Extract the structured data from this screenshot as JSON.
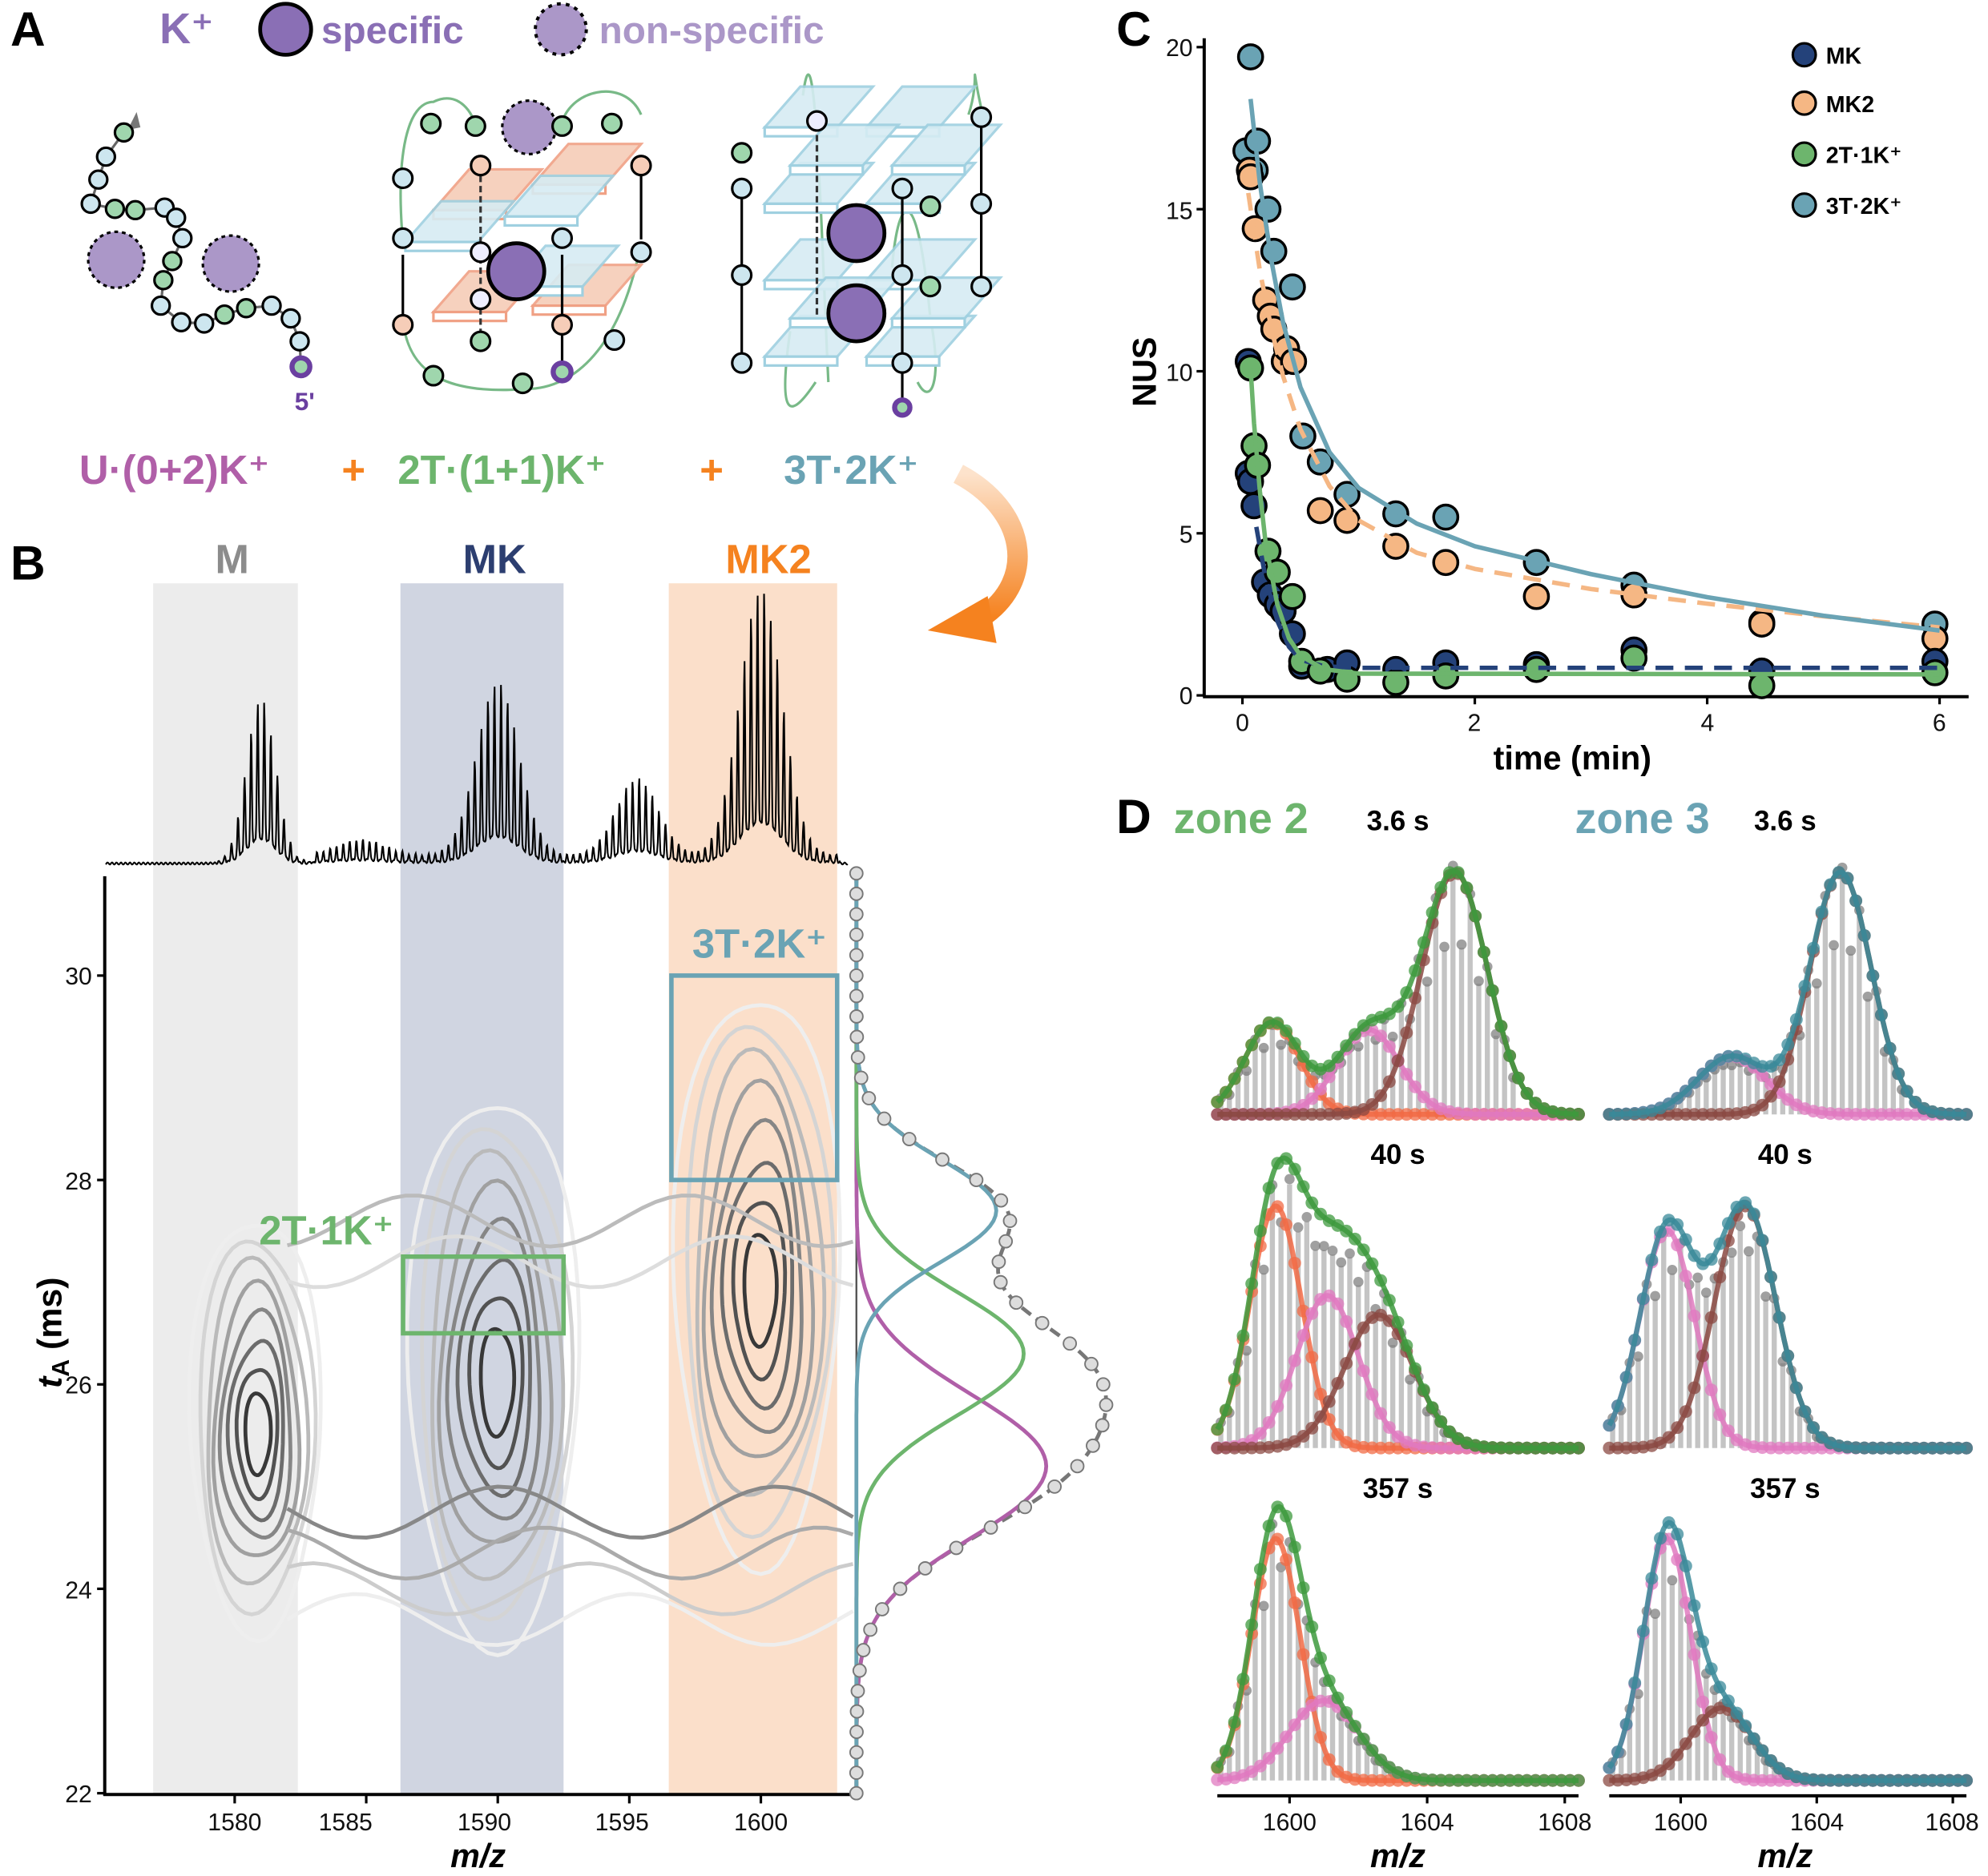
{
  "panel_a": {
    "letter": "A",
    "legend_k": "K⁺",
    "legend_specific": "specific",
    "legend_nonspecific": "non-specific",
    "five_prime": "5'",
    "species": [
      "U·(0+2)K⁺",
      "+",
      "2T·(1+1)K⁺",
      "+",
      "3T·2K⁺"
    ],
    "colors": {
      "k": "#8a6fb5",
      "specific": "#8a6fb5",
      "nonspecific": "#ab97c8",
      "U": "#b05fa8",
      "plus": "#f5821f",
      "2T": "#6db56d",
      "3T": "#6aa3b4"
    }
  },
  "panel_b": {
    "letter": "B",
    "bands": [
      {
        "label": "M",
        "mz_range": [
          1576.9,
          1582.4
        ],
        "color": "#ececec",
        "label_color": "#8c8c8c"
      },
      {
        "label": "MK",
        "mz_range": [
          1586.3,
          1592.5
        ],
        "color": "#d0d5e1",
        "label_color": "#2c3e70"
      },
      {
        "label": "MK2",
        "mz_range": [
          1596.5,
          1602.9
        ],
        "color": "#fbdfca",
        "label_color": "#f5821f"
      }
    ],
    "boxes": [
      {
        "label": "3T·2K⁺",
        "mz_range": [
          1596.6,
          1602.9
        ],
        "tA_range": [
          28.0,
          30.0
        ],
        "color": "#6aa3b4"
      },
      {
        "label": "2T·1K⁺",
        "mz_range": [
          1586.4,
          1592.5
        ],
        "tA_range": [
          26.5,
          27.25
        ],
        "color": "#6db56d"
      }
    ],
    "x_label": "m/z",
    "y_label_main": "t",
    "y_label_sub": "A",
    "y_label_unit": " (ms)",
    "x_ticks": [
      "1580",
      "1585",
      "1590",
      "1595",
      "1600"
    ],
    "y_ticks": [
      "22",
      "24",
      "26",
      "28",
      "30"
    ]
  },
  "panel_c": {
    "letter": "C",
    "legend": [
      "MK",
      "MK2",
      "2T·1K⁺",
      "3T·2K⁺"
    ],
    "x_label": "time (min)",
    "y_label": "NUS",
    "x_ticks": [
      "0",
      "2",
      "4",
      "6"
    ],
    "y_ticks": [
      "0",
      "5",
      "10",
      "15",
      "20"
    ]
  },
  "panel_d": {
    "letter": "D",
    "zone2_label": "zone 2",
    "zone3_label": "zone 3",
    "times": [
      "3.6 s",
      "40 s",
      "357 s"
    ],
    "x_label": "m/z",
    "x_ticks": [
      "1600",
      "1604",
      "1608"
    ],
    "zone_colors": {
      "zone2": "#6db56d",
      "zone3": "#6aa3b4"
    }
  },
  "chart_data": [
    {
      "type": "line",
      "panel": "B-top mass spectrum",
      "x_range": [
        1575,
        1604
      ],
      "envelopes_relative": [
        {
          "mz": 1581.0,
          "width": 0.55,
          "height": 0.62
        },
        {
          "mz": 1584.8,
          "width": 0.9,
          "height": 0.06
        },
        {
          "mz": 1590.0,
          "width": 0.8,
          "height": 0.65
        },
        {
          "mz": 1595.3,
          "width": 0.8,
          "height": 0.29
        },
        {
          "mz": 1600.0,
          "width": 0.8,
          "height": 1.0
        }
      ]
    },
    {
      "type": "heatmap",
      "panel": "B contour map",
      "xlabel": "m/z",
      "ylabel": "tA (ms)",
      "xlim": [
        1575,
        1604
      ],
      "ylim": [
        22,
        31
      ],
      "contour_peaks": [
        {
          "species": "M",
          "mz": 1580.9,
          "tA": 25.5,
          "mz_halfwidth": 2.6,
          "tA_halfwidth": 1.9
        },
        {
          "species": "MK",
          "mz": 1590.0,
          "tA": 26.0,
          "mz_halfwidth": 3.4,
          "tA_halfwidth": 2.5
        },
        {
          "species": "MK2",
          "mz": 1600.0,
          "tA": 26.9,
          "mz_halfwidth": 3.3,
          "tA_halfwidth": 2.6
        }
      ]
    },
    {
      "type": "line",
      "panel": "B arrival time distribution",
      "y_axis": "tA (ms)",
      "components": [
        {
          "species": "U·(0+2)K⁺",
          "color": "#b05fa8",
          "tA": 25.2,
          "sigma": 0.7,
          "amplitude": 0.76
        },
        {
          "species": "2T·(1+1)K⁺",
          "color": "#6db56d",
          "tA": 26.3,
          "sigma": 0.6,
          "amplitude": 0.67
        },
        {
          "species": "3T·2K⁺",
          "color": "#6aa3b4",
          "tA": 27.7,
          "sigma": 0.5,
          "amplitude": 0.56
        }
      ]
    },
    {
      "type": "scatter",
      "panel": "C",
      "xlabel": "time (min)",
      "ylabel": "NUS",
      "xlim": [
        -0.3,
        6.2
      ],
      "ylim": [
        0,
        20
      ],
      "legend_position": "top-right",
      "series": [
        {
          "name": "MK",
          "color": "#24427a",
          "fit_style": "dashed",
          "points": [
            [
              0.05,
              10.3
            ],
            [
              0.05,
              6.85
            ],
            [
              0.07,
              6.6
            ],
            [
              0.1,
              5.85
            ],
            [
              0.19,
              3.5
            ],
            [
              0.24,
              3.1
            ],
            [
              0.3,
              2.8
            ],
            [
              0.35,
              2.6
            ],
            [
              0.43,
              1.9
            ],
            [
              0.51,
              0.9
            ],
            [
              0.73,
              0.8
            ],
            [
              0.9,
              1.0
            ],
            [
              1.32,
              0.8
            ],
            [
              1.75,
              1.0
            ],
            [
              2.53,
              0.95
            ],
            [
              3.37,
              1.4
            ],
            [
              4.47,
              0.75
            ],
            [
              5.96,
              1.05
            ]
          ],
          "fit": [
            [
              0.12,
              5.2
            ],
            [
              0.2,
              3.6
            ],
            [
              0.3,
              2.3
            ],
            [
              0.4,
              1.5
            ],
            [
              0.5,
              1.1
            ],
            [
              0.7,
              0.9
            ],
            [
              1,
              0.85
            ],
            [
              6,
              0.85
            ]
          ]
        },
        {
          "name": "MK2",
          "color": "#f5b784",
          "fit_style": "dashed",
          "points": [
            [
              0.06,
              16.2
            ],
            [
              0.07,
              16.0
            ],
            [
              0.11,
              14.4
            ],
            [
              0.2,
              12.2
            ],
            [
              0.24,
              11.7
            ],
            [
              0.27,
              11.3
            ],
            [
              0.36,
              10.3
            ],
            [
              0.38,
              10.7
            ],
            [
              0.44,
              10.3
            ],
            [
              0.67,
              5.7
            ],
            [
              0.9,
              5.4
            ],
            [
              1.32,
              4.6
            ],
            [
              1.75,
              4.1
            ],
            [
              2.53,
              3.05
            ],
            [
              3.37,
              3.1
            ],
            [
              4.47,
              2.2
            ],
            [
              5.96,
              1.75
            ]
          ],
          "fit": [
            [
              0.05,
              15.5
            ],
            [
              0.15,
              13.1
            ],
            [
              0.25,
              11.3
            ],
            [
              0.35,
              9.85
            ],
            [
              0.5,
              8.2
            ],
            [
              0.75,
              6.45
            ],
            [
              1,
              5.4
            ],
            [
              1.5,
              4.4
            ],
            [
              2,
              3.9
            ],
            [
              3,
              3.28
            ],
            [
              4,
              2.83
            ],
            [
              5,
              2.44
            ],
            [
              6,
              2.1
            ]
          ]
        },
        {
          "name": "2T·1K⁺",
          "color": "#6db56d",
          "fit_style": "solid",
          "points": [
            [
              0.07,
              10.1
            ],
            [
              0.1,
              7.7
            ],
            [
              0.13,
              7.1
            ],
            [
              0.22,
              4.45
            ],
            [
              0.3,
              3.8
            ],
            [
              0.43,
              3.05
            ],
            [
              0.51,
              1.05
            ],
            [
              0.67,
              0.75
            ],
            [
              0.9,
              0.5
            ],
            [
              1.32,
              0.4
            ],
            [
              1.75,
              0.6
            ],
            [
              2.53,
              0.8
            ],
            [
              3.37,
              1.15
            ],
            [
              4.47,
              0.3
            ],
            [
              5.96,
              0.7
            ]
          ],
          "fit": [
            [
              0.07,
              10.1
            ],
            [
              0.1,
              8.4
            ],
            [
              0.15,
              6.3
            ],
            [
              0.2,
              4.7
            ],
            [
              0.3,
              2.8
            ],
            [
              0.4,
              1.76
            ],
            [
              0.5,
              1.23
            ],
            [
              0.7,
              0.81
            ],
            [
              1,
              0.67
            ],
            [
              6,
              0.65
            ]
          ]
        },
        {
          "name": "3T·2K⁺",
          "color": "#6aa3b4",
          "fit_style": "solid",
          "points": [
            [
              0.07,
              19.7
            ],
            [
              0.03,
              16.8
            ],
            [
              0.13,
              17.1
            ],
            [
              0.11,
              16.2
            ],
            [
              0.22,
              15.0
            ],
            [
              0.27,
              13.7
            ],
            [
              0.43,
              12.6
            ],
            [
              0.52,
              8.0
            ],
            [
              0.67,
              7.2
            ],
            [
              0.9,
              6.2
            ],
            [
              1.32,
              5.6
            ],
            [
              1.75,
              5.5
            ],
            [
              2.53,
              4.1
            ],
            [
              3.37,
              3.4
            ],
            [
              4.47,
              2.25
            ],
            [
              5.96,
              2.2
            ]
          ],
          "fit": [
            [
              0.07,
              18.4
            ],
            [
              0.15,
              15.8
            ],
            [
              0.25,
              13.4
            ],
            [
              0.35,
              11.5
            ],
            [
              0.5,
              9.5
            ],
            [
              0.75,
              7.5
            ],
            [
              1,
              6.4
            ],
            [
              1.5,
              5.3
            ],
            [
              2,
              4.6
            ],
            [
              3,
              3.74
            ],
            [
              4,
              3.03
            ],
            [
              5,
              2.46
            ],
            [
              6,
              2.0
            ]
          ]
        }
      ]
    },
    {
      "type": "line",
      "panel": "D",
      "xlabel": "m/z",
      "xlim": [
        1597.9,
        1608.4
      ],
      "component_colors": {
        "a": "#f26b45",
        "b": "#e07ac0",
        "c": "#8b4a43"
      },
      "subplots": [
        {
          "zone": "zone 2",
          "time": "3.6 s",
          "total_color": "#3d9a3d",
          "components": [
            {
              "key": "a",
              "mz": 1599.5,
              "sigma": 0.8,
              "amp": 0.38
            },
            {
              "key": "b",
              "mz": 1602.3,
              "sigma": 0.9,
              "amp": 0.35
            },
            {
              "key": "c",
              "mz": 1604.8,
              "sigma": 0.95,
              "amp": 1.0
            }
          ]
        },
        {
          "zone": "zone 3",
          "time": "3.6 s",
          "total_color": "#3a8a99",
          "components": [
            {
              "key": "b",
              "mz": 1601.5,
              "sigma": 1.0,
              "amp": 0.24
            },
            {
              "key": "c",
              "mz": 1604.7,
              "sigma": 0.9,
              "amp": 1.0
            }
          ]
        },
        {
          "zone": "zone 2",
          "time": "40 s",
          "total_color": "#3d9a3d",
          "components": [
            {
              "key": "a",
              "mz": 1599.6,
              "sigma": 0.75,
              "amp": 1.0
            },
            {
              "key": "b",
              "mz": 1601.1,
              "sigma": 0.9,
              "amp": 0.63
            },
            {
              "key": "c",
              "mz": 1602.6,
              "sigma": 1.0,
              "amp": 0.55
            }
          ]
        },
        {
          "zone": "zone 3",
          "time": "40 s",
          "total_color": "#3a8a99",
          "components": [
            {
              "key": "b",
              "mz": 1599.6,
              "sigma": 0.8,
              "amp": 0.9
            },
            {
              "key": "c",
              "mz": 1601.9,
              "sigma": 0.9,
              "amp": 1.0
            }
          ]
        },
        {
          "zone": "zone 2",
          "time": "357 s",
          "total_color": "#3d9a3d",
          "components": [
            {
              "key": "a",
              "mz": 1599.6,
              "sigma": 0.7,
              "amp": 1.0
            },
            {
              "key": "b",
              "mz": 1601.0,
              "sigma": 1.0,
              "amp": 0.33
            }
          ]
        },
        {
          "zone": "zone 3",
          "time": "357 s",
          "total_color": "#3a8a99",
          "components": [
            {
              "key": "b",
              "mz": 1599.6,
              "sigma": 0.7,
              "amp": 1.0
            },
            {
              "key": "c",
              "mz": 1601.2,
              "sigma": 0.9,
              "amp": 0.3
            }
          ]
        }
      ]
    }
  ]
}
